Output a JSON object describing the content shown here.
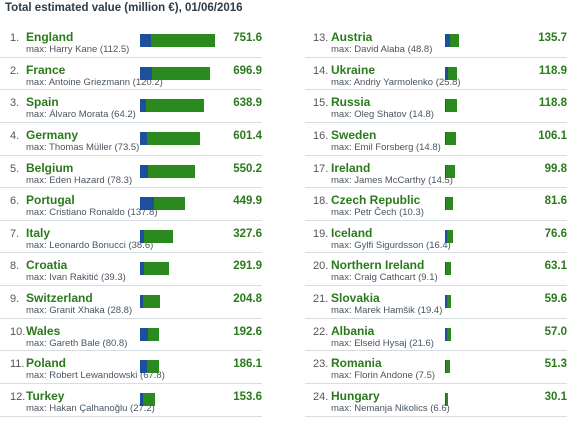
{
  "title": "Total estimated value (million €), 01/06/2016",
  "colors": {
    "country": "#2a7a1c",
    "bar_total": "#2b8a1e",
    "bar_max": "#1e4f9c"
  },
  "chart_data": {
    "type": "bar",
    "title": "Total estimated value (million €), 01/06/2016",
    "max_prefix": "max:",
    "rows": [
      {
        "rank": "1.",
        "country": "England",
        "value": 751.6,
        "player": "Harry Kane",
        "player_value": 112.5
      },
      {
        "rank": "2.",
        "country": "France",
        "value": 696.9,
        "player": "Antoine Griezmann",
        "player_value": 120.2
      },
      {
        "rank": "3.",
        "country": "Spain",
        "value": 638.9,
        "player": "Álvaro Morata",
        "player_value": 64.2
      },
      {
        "rank": "4.",
        "country": "Germany",
        "value": 601.4,
        "player": "Thomas Müller",
        "player_value": 73.5
      },
      {
        "rank": "5.",
        "country": "Belgium",
        "value": 550.2,
        "player": "Eden Hazard",
        "player_value": 78.3
      },
      {
        "rank": "6.",
        "country": "Portugal",
        "value": 449.9,
        "player": "Cristiano Ronaldo",
        "player_value": 137.8
      },
      {
        "rank": "7.",
        "country": "Italy",
        "value": 327.6,
        "player": "Leonardo Bonucci",
        "player_value": 38.6
      },
      {
        "rank": "8.",
        "country": "Croatia",
        "value": 291.9,
        "player": "Ivan Rakitić",
        "player_value": 39.3
      },
      {
        "rank": "9.",
        "country": "Switzerland",
        "value": 204.8,
        "player": "Granit Xhaka",
        "player_value": 28.8
      },
      {
        "rank": "10.",
        "country": "Wales",
        "value": 192.6,
        "player": "Gareth Bale",
        "player_value": 80.8
      },
      {
        "rank": "11.",
        "country": "Poland",
        "value": 186.1,
        "player": "Robert Lewandowski",
        "player_value": 67.8
      },
      {
        "rank": "12.",
        "country": "Turkey",
        "value": 153.6,
        "player": "Hakan Çalhanoğlu",
        "player_value": 27.2
      },
      {
        "rank": "13.",
        "country": "Austria",
        "value": 135.7,
        "player": "David Alaba",
        "player_value": 48.8
      },
      {
        "rank": "14.",
        "country": "Ukraine",
        "value": 118.9,
        "player": "Andriy Yarmolenko",
        "player_value": 25.8
      },
      {
        "rank": "15.",
        "country": "Russia",
        "value": 118.8,
        "player": "Oleg Shatov",
        "player_value": 14.8
      },
      {
        "rank": "16.",
        "country": "Sweden",
        "value": 106.1,
        "player": "Emil Forsberg",
        "player_value": 14.8
      },
      {
        "rank": "17.",
        "country": "Ireland",
        "value": 99.8,
        "player": "James McCarthy",
        "player_value": 14.5
      },
      {
        "rank": "18.",
        "country": "Czech Republic",
        "value": 81.6,
        "player": "Petr Čech",
        "player_value": 10.3
      },
      {
        "rank": "19.",
        "country": "Iceland",
        "value": 76.6,
        "player": "Gylfi Sigurdsson",
        "player_value": 16.4
      },
      {
        "rank": "20.",
        "country": "Northern Ireland",
        "value": 63.1,
        "player": "Craig Cathcart",
        "player_value": 9.1
      },
      {
        "rank": "21.",
        "country": "Slovakia",
        "value": 59.6,
        "player": "Marek Hamšik",
        "player_value": 19.4
      },
      {
        "rank": "22.",
        "country": "Albania",
        "value": 57.0,
        "player": "Elseid Hysaj",
        "player_value": 21.6
      },
      {
        "rank": "23.",
        "country": "Romania",
        "value": 51.3,
        "player": "Florin Andone",
        "player_value": 7.5
      },
      {
        "rank": "24.",
        "country": "Hungary",
        "value": 30.1,
        "player": "Nemanja Nikolics",
        "player_value": 6.6
      }
    ]
  }
}
